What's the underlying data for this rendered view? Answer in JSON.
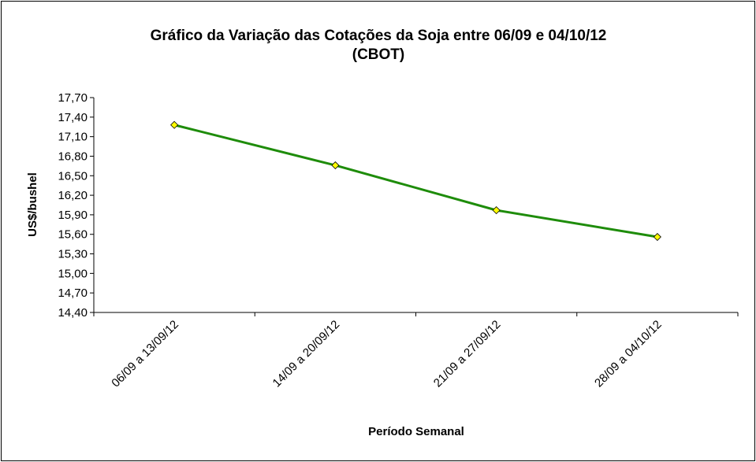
{
  "chart_data": {
    "type": "line",
    "title": "Gráfico da Variação das Cotações da Soja entre 06/09 e 04/10/12",
    "subtitle": "(CBOT)",
    "xlabel": "Período Semanal",
    "ylabel": "US$/bushel",
    "categories": [
      "06/09 a 13/09/12",
      "14/09 a 20/09/12",
      "21/09 a 27/09/12",
      "28/09 a 04/10/12"
    ],
    "series": [
      {
        "values": [
          17.28,
          16.66,
          15.97,
          15.56
        ],
        "color": "#1e8c0a",
        "marker_color": "#ffff00"
      }
    ],
    "ylim": [
      14.4,
      17.7
    ],
    "yticks": [
      "17,70",
      "17,40",
      "17,10",
      "16,80",
      "16,50",
      "16,20",
      "15,90",
      "15,60",
      "15,30",
      "15,00",
      "14,70",
      "14,40"
    ],
    "grid": false,
    "legend": "none"
  }
}
